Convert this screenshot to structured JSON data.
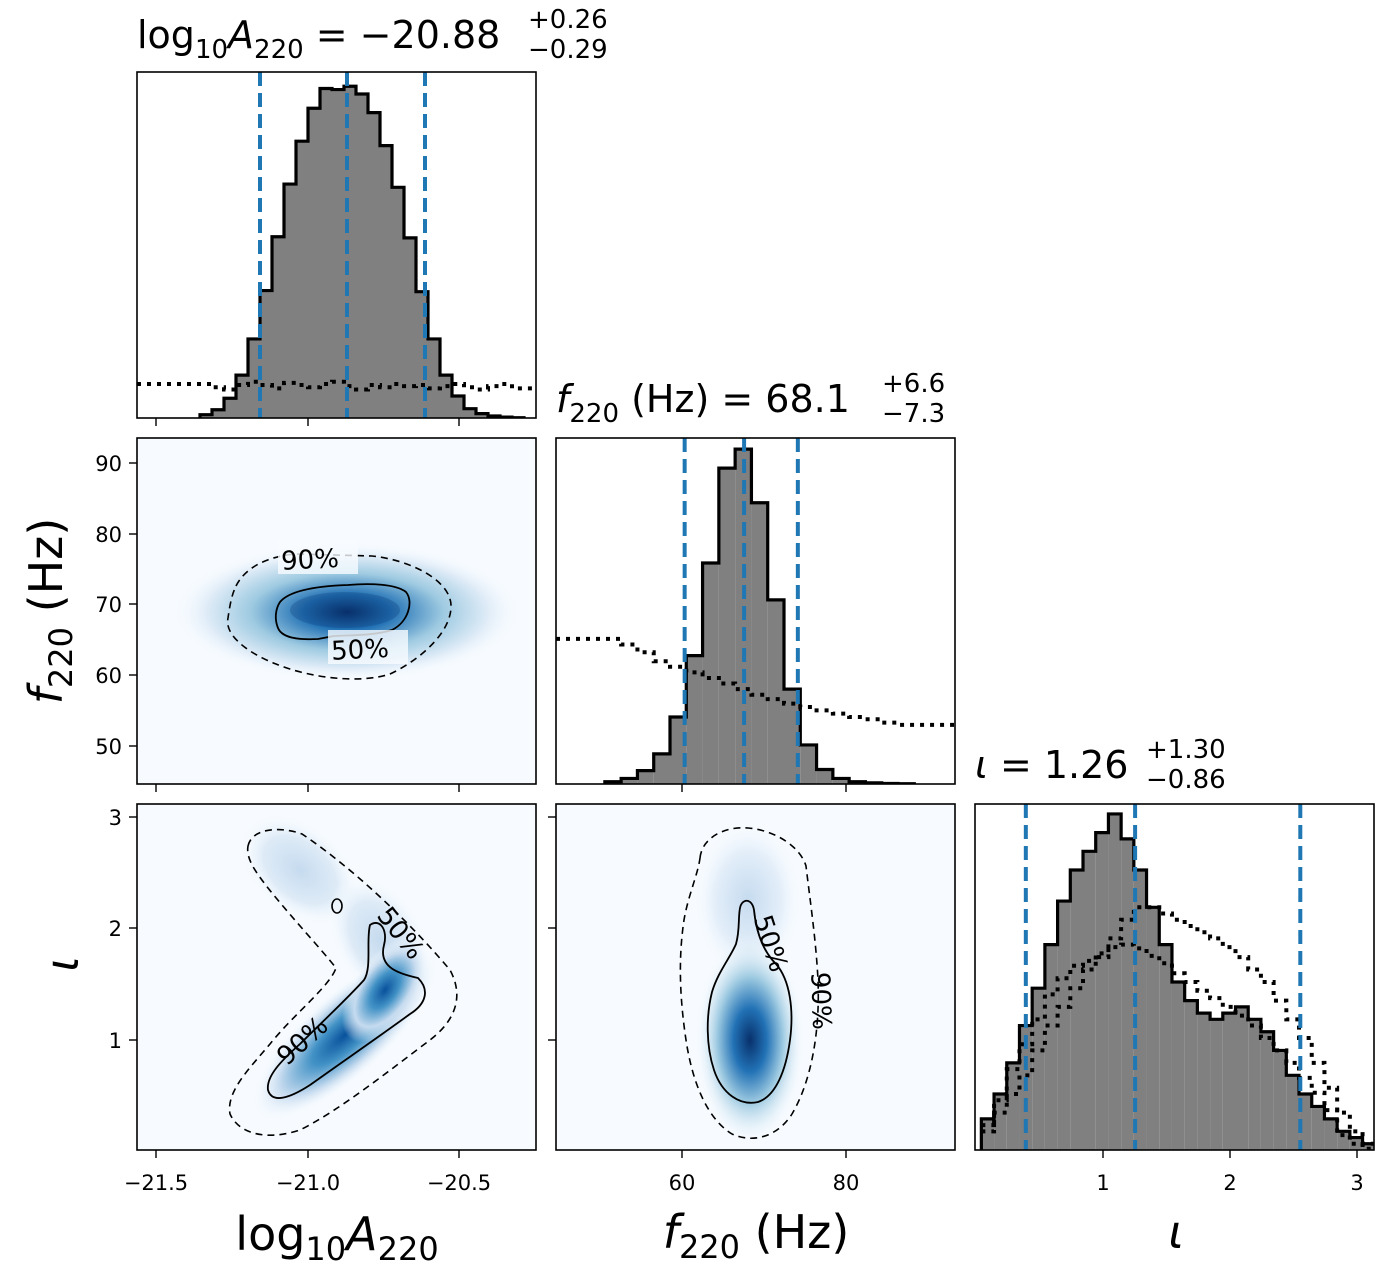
{
  "chart_data": [
    {
      "type": "histogram",
      "panel": "log10A220",
      "title": {
        "base": "log",
        "sub1": "10",
        "var": "A",
        "sub2": "220",
        "eq": " = ",
        "median": "−20.88",
        "plus": "+0.26",
        "minus": "−0.29"
      },
      "quantiles": [
        -21.17,
        -20.88,
        -20.62
      ],
      "x": [
        -21.35,
        -21.31,
        -21.27,
        -21.23,
        -21.19,
        -21.15,
        -21.11,
        -21.07,
        -21.03,
        -20.99,
        -20.95,
        -20.91,
        -20.87,
        -20.83,
        -20.79,
        -20.75,
        -20.71,
        -20.67,
        -20.63,
        -20.59,
        -20.55,
        -20.51,
        -20.47,
        -20.43,
        -20.39,
        -20.35,
        -20.31
      ],
      "density": [
        0.3,
        0.75,
        1.8,
        3.9,
        7.2,
        11.6,
        16.5,
        21.3,
        25.2,
        28.2,
        30.0,
        29.9,
        30.2,
        29.5,
        27.8,
        24.8,
        21.0,
        16.4,
        11.5,
        7.2,
        3.9,
        2.0,
        0.85,
        0.4,
        0.18,
        0.08,
        0.03
      ],
      "prior_density": [
        3.1,
        2.8,
        2.6,
        3.0,
        3.3,
        3.0,
        2.7,
        3.2,
        3.0,
        2.8,
        3.1,
        3.3,
        2.9,
        2.6,
        3.0,
        2.8,
        3.1,
        2.9,
        3.0,
        2.7,
        2.9,
        3.1,
        2.8,
        2.6,
        2.9,
        3.1,
        2.7
      ],
      "xlim": [
        -21.58,
        -20.25
      ],
      "ticks": [
        "−21.5",
        "−21.0",
        "−20.5"
      ]
    },
    {
      "type": "heatmap",
      "panel": "f220 vs log10A220",
      "xlim": [
        -21.58,
        -20.25
      ],
      "ylim": [
        45,
        94
      ],
      "yticks": [
        "50",
        "60",
        "70",
        "80",
        "90"
      ],
      "contours": [
        "90%",
        "50%"
      ]
    },
    {
      "type": "histogram",
      "panel": "f220",
      "title": {
        "var": "f",
        "sub": "220",
        "unit": " (Hz) = ",
        "median": "68.1",
        "plus": "+6.6",
        "minus": "−7.3"
      },
      "quantiles": [
        60.8,
        68.1,
        74.7
      ],
      "x": [
        52,
        54,
        56,
        58,
        60,
        62,
        64,
        66,
        68,
        70,
        72,
        74,
        76,
        78,
        80,
        82,
        84,
        86,
        88
      ],
      "density": [
        0.2,
        0.5,
        1.2,
        2.7,
        6.0,
        11.5,
        19.8,
        28.3,
        30.0,
        25.2,
        16.5,
        8.5,
        3.5,
        1.3,
        0.5,
        0.2,
        0.1,
        0.05,
        0.02
      ],
      "prior_density": [
        13.0,
        12.5,
        11.8,
        11.0,
        10.5,
        10.0,
        9.5,
        9.0,
        8.5,
        8.0,
        7.6,
        7.2,
        6.9,
        6.6,
        6.3,
        6.0,
        5.8,
        5.5,
        5.3
      ],
      "xlim": [
        45,
        94
      ],
      "ticks": [
        "60",
        "80"
      ]
    },
    {
      "type": "heatmap",
      "panel": "iota vs log10A220",
      "xlim": [
        -21.58,
        -20.25
      ],
      "ylim": [
        0.05,
        3.14
      ],
      "yticks": [
        "1",
        "2",
        "3"
      ],
      "contours": [
        "90%",
        "50%"
      ]
    },
    {
      "type": "heatmap",
      "panel": "iota vs f220",
      "xlim": [
        45,
        94
      ],
      "ylim": [
        0.05,
        3.14
      ],
      "contours": [
        "50%",
        "90%"
      ]
    },
    {
      "type": "histogram",
      "panel": "iota",
      "title": {
        "var": "ι",
        "eq": " = ",
        "median": "1.26",
        "plus": "+1.30",
        "minus": "−0.86"
      },
      "quantiles": [
        0.4,
        1.26,
        2.56
      ],
      "x": [
        0.1,
        0.2,
        0.3,
        0.4,
        0.5,
        0.6,
        0.7,
        0.8,
        0.9,
        1.0,
        1.1,
        1.2,
        1.3,
        1.4,
        1.5,
        1.6,
        1.7,
        1.8,
        1.9,
        2.0,
        2.1,
        2.2,
        2.3,
        2.4,
        2.5,
        2.6,
        2.7,
        2.8,
        2.9,
        3.0,
        3.1
      ],
      "density": [
        2.5,
        4.5,
        7.0,
        10.0,
        13.0,
        16.5,
        20.0,
        22.5,
        24.0,
        25.5,
        27.0,
        25.0,
        22.5,
        19.5,
        16.5,
        13.5,
        12.0,
        11.0,
        10.5,
        11.0,
        11.5,
        10.5,
        9.5,
        8.0,
        6.0,
        4.5,
        3.5,
        2.5,
        1.5,
        1.0,
        0.5
      ],
      "prior_density": [
        2.0,
        4.0,
        6.5,
        8.5,
        10.5,
        12.5,
        13.8,
        14.8,
        15.2,
        15.8,
        16.3,
        16.5,
        16.2,
        15.6,
        15.0,
        14.2,
        13.5,
        12.8,
        12.2,
        11.5,
        10.8,
        10.0,
        9.0,
        8.0,
        7.0,
        5.8,
        4.6,
        3.2,
        1.2,
        0.5,
        0.1
      ],
      "prior2_density": [
        1.5,
        3.0,
        4.5,
        6.0,
        8.0,
        10.0,
        11.5,
        13.0,
        14.5,
        15.5,
        17.0,
        18.5,
        19.5,
        19.5,
        19.0,
        18.5,
        18.0,
        17.5,
        17.0,
        16.3,
        15.5,
        14.5,
        13.5,
        12.0,
        10.5,
        9.0,
        7.0,
        5.0,
        3.0,
        1.5,
        0.5
      ],
      "xlim": [
        0.0,
        3.14
      ],
      "ticks": [
        "1",
        "2",
        "3"
      ]
    }
  ],
  "axis_labels": {
    "x_left": {
      "base": "log",
      "sub1": "10",
      "var": "A",
      "sub2": "220"
    },
    "x_mid": {
      "var": "f",
      "sub": "220",
      "unit": " (Hz)"
    },
    "x_right": {
      "var": "ι"
    },
    "y_mid": {
      "var": "f",
      "sub": "220",
      "unit": " (Hz)"
    },
    "y_bottom": {
      "var": "ι"
    }
  },
  "colors": {
    "hist_fill": "#808080",
    "quantile_line": "#1f77b4",
    "cmap_low": "#f7fbff",
    "cmap_high": "#08306b"
  }
}
